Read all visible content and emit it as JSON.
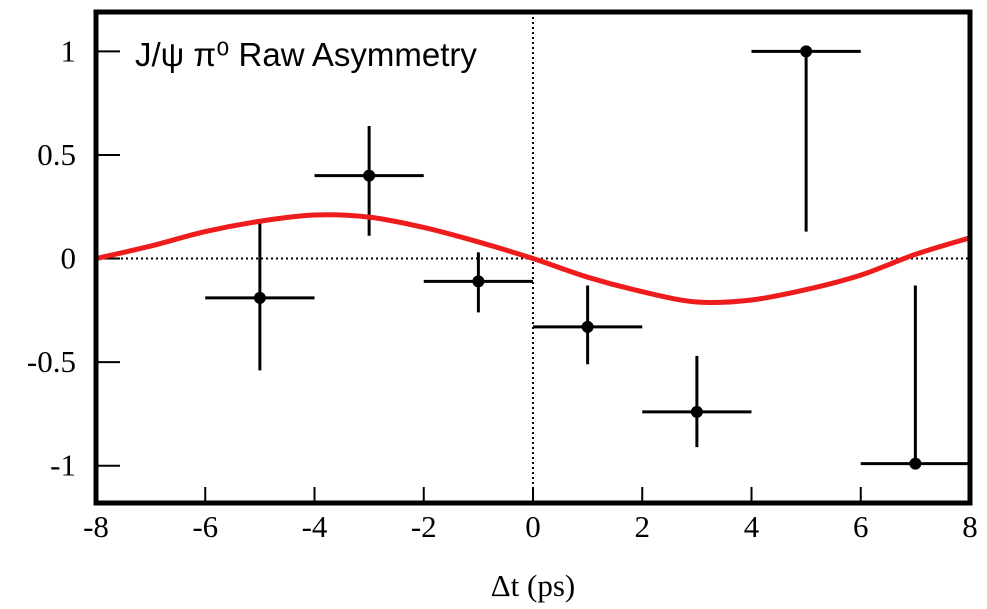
{
  "chart_data": {
    "type": "scatter",
    "title": "J/ψ π⁰ Raw Asymmetry",
    "xlabel": "Δt (ps)",
    "xlim": [
      -8,
      8
    ],
    "ylim": [
      -1.18,
      1.19
    ],
    "xticks": [
      -8,
      -6,
      -4,
      -2,
      0,
      2,
      4,
      6,
      8
    ],
    "yticks": [
      1,
      0.5,
      0,
      -0.5,
      -1
    ],
    "zero_lines": true,
    "series": [
      {
        "type": "errorbar",
        "color": "#000000",
        "x": [
          -5,
          -3,
          -1,
          1,
          3,
          5,
          7
        ],
        "y": [
          -0.19,
          0.4,
          -0.11,
          -0.33,
          -0.74,
          1.0,
          -0.99
        ],
        "xerr": [
          1,
          1,
          1,
          1,
          1,
          1,
          1
        ],
        "yerr_minus": [
          0.35,
          0.29,
          0.15,
          0.18,
          0.17,
          0.87,
          0
        ],
        "yerr_plus": [
          0.36,
          0.24,
          0.14,
          0.2,
          0.27,
          0,
          0.86
        ]
      },
      {
        "type": "line",
        "color": "#ee1c1c",
        "x": [
          -8,
          -7,
          -6,
          -5,
          -4,
          -3,
          -2,
          -1,
          0,
          1,
          2,
          3,
          4,
          5,
          6,
          7,
          8
        ],
        "y": [
          0.0,
          0.06,
          0.13,
          0.18,
          0.21,
          0.2,
          0.15,
          0.08,
          0.0,
          -0.09,
          -0.16,
          -0.21,
          -0.2,
          -0.15,
          -0.08,
          0.02,
          0.1
        ]
      }
    ]
  }
}
